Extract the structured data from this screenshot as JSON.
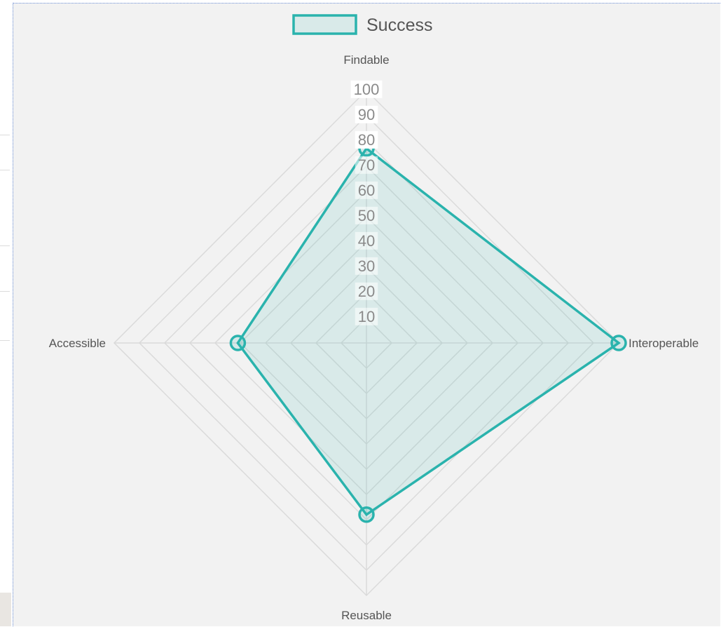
{
  "chart_data": {
    "type": "radar",
    "title": "",
    "legend": {
      "position": "top",
      "entries": [
        "Success"
      ]
    },
    "axes": [
      "Findable",
      "Interoperable",
      "Reusable",
      "Accessible"
    ],
    "r_range": [
      0,
      100
    ],
    "ticks": [
      10,
      20,
      30,
      40,
      50,
      60,
      70,
      80,
      90,
      100
    ],
    "grid": true,
    "series": [
      {
        "name": "Success",
        "values": [
          77,
          100,
          68,
          51
        ]
      }
    ]
  },
  "colors": {
    "line": "#2ab3ad",
    "fill": "rgba(42,179,173,0.12)",
    "grid": "#dadada",
    "background": "#f2f2f2"
  }
}
